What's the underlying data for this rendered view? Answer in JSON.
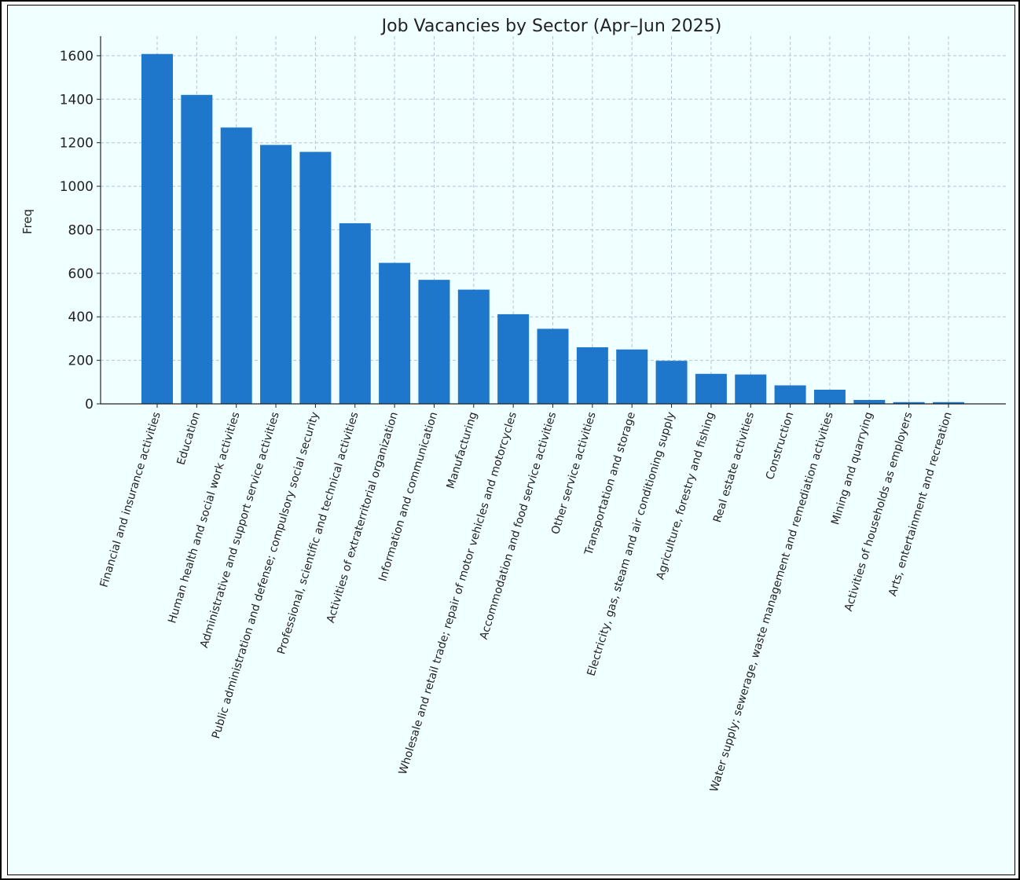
{
  "chart_data": {
    "type": "bar",
    "title": "Job Vacancies by Sector (Apr–Jun 2025)",
    "xlabel": "",
    "ylabel": "Freq",
    "ylim": [
      0,
      1690
    ],
    "yticks": [
      0,
      200,
      400,
      600,
      800,
      1000,
      1200,
      1400,
      1600
    ],
    "grid": true,
    "bar_color": "#1f77cc",
    "grid_color": "#b0c4de",
    "categories": [
      "Financial and insurance activities",
      "Education",
      "Human health and social work activities",
      "Administrative and support service activities",
      "Public administration and defense; compulsory social security",
      "Professional, scientific and technical activities",
      "Activities of extraterritorial organization",
      "Information and communication",
      "Manufacturing",
      "Wholesale and retail trade; repair of motor vehicles and motorcycles",
      "Accommodation and food service activities",
      "Other service activities",
      "Transportation and storage",
      "Electricity, gas, steam and air conditioning supply",
      "Agriculture, forestry and fishing",
      "Real estate activities",
      "Construction",
      "Water supply; sewerage, waste management and remediation activities",
      "Mining and quarrying",
      "Activities of households as employers",
      "Arts, entertainment and recreation"
    ],
    "values": [
      1608,
      1420,
      1270,
      1190,
      1158,
      830,
      648,
      570,
      525,
      412,
      345,
      260,
      250,
      198,
      138,
      135,
      85,
      65,
      18,
      8,
      8
    ]
  }
}
